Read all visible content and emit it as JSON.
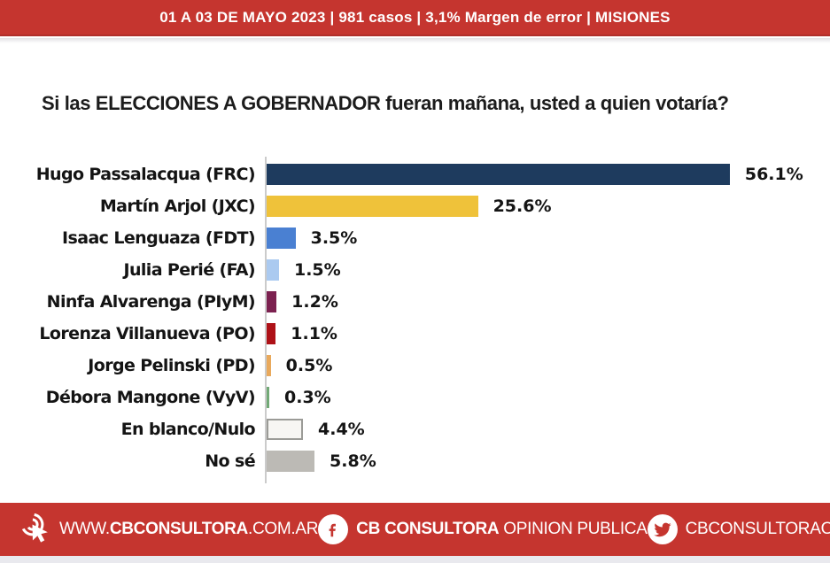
{
  "banner": {
    "text": "01 A 03 DE MAYO 2023 | 981 casos  |  3,1% Margen de error  | MISIONES"
  },
  "title": "Si las ELECCIONES A GOBERNADOR fueran mañana, usted a quien votaría?",
  "chart_data": {
    "type": "bar",
    "orientation": "horizontal",
    "title": "Si las ELECCIONES A GOBERNADOR fueran mañana, usted a quien votaría?",
    "categories": [
      "Hugo Passalacqua (FRC)",
      "Martín Arjol (JXC)",
      "Isaac Lenguaza (FDT)",
      "Julia Perié (FA)",
      "Ninfa Alvarenga (PIyM)",
      "Lorenza Villanueva (PO)",
      "Jorge Pelinski (PD)",
      "Débora Mangone (VyV)",
      "En blanco/Nulo",
      "No sé"
    ],
    "values": [
      56.1,
      25.6,
      3.5,
      1.5,
      1.2,
      1.1,
      0.5,
      0.3,
      4.4,
      5.8
    ],
    "value_labels": [
      "56.1%",
      "25.6%",
      "3.5%",
      "1.5%",
      "1.2%",
      "1.1%",
      "0.5%",
      "0.3%",
      "4.4%",
      "5.8%"
    ],
    "bar_colors": [
      "#1e3b5e",
      "#efc23a",
      "#4a80d2",
      "#abcaf0",
      "#7c2150",
      "#ae1117",
      "#e9a95c",
      "#72a976",
      "#f7f6f3",
      "#bcbab5"
    ],
    "bar_border_colors": [
      null,
      null,
      null,
      null,
      null,
      null,
      null,
      null,
      "#9b9b97",
      null
    ],
    "xlim": [
      0,
      60
    ],
    "unit": "%",
    "grid": false,
    "legend": false
  },
  "footer": {
    "website": {
      "icon": "click-cursor-icon",
      "prefix": "WWW.",
      "bold": "CBCONSULTORA",
      "suffix": ".COM.AR"
    },
    "facebook": {
      "icon": "facebook-icon",
      "bold": "CB CONSULTORA",
      "light": " OPINION PUBLICA"
    },
    "twitter": {
      "icon": "twitter-icon",
      "handle": "CBCONSULTORAOK"
    }
  },
  "colors": {
    "brand_red": "#c5352f",
    "text_dark": "#141414",
    "axis_gray": "#cbcbcb"
  }
}
